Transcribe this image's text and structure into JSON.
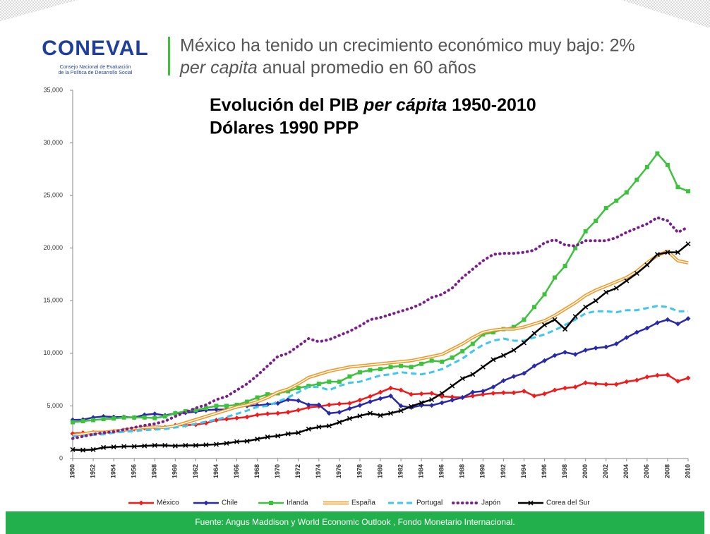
{
  "logo": {
    "name": "CONEVAL",
    "sub1": "Consejo Nacional de Evaluación",
    "sub2": "de la Política de Desarrollo Social"
  },
  "header": {
    "line1": "México ha tenido un crecimiento económico muy bajo: 2%",
    "line2_italic": "per capita",
    "line2_rest": " anual promedio en 60 años"
  },
  "footer": "Fuente: Angus Maddison y World Economic Outlook , Fondo Monetario Internacional.",
  "chart_data": {
    "type": "line",
    "title": [
      "Evolución del PIB ",
      "per cápita",
      " 1950-2010"
    ],
    "subtitle": "Dólares 1990 PPP",
    "x": [
      1950,
      1951,
      1952,
      1953,
      1954,
      1955,
      1956,
      1957,
      1958,
      1959,
      1960,
      1961,
      1962,
      1963,
      1964,
      1965,
      1966,
      1967,
      1968,
      1969,
      1970,
      1971,
      1972,
      1973,
      1974,
      1975,
      1976,
      1977,
      1978,
      1979,
      1980,
      1981,
      1982,
      1983,
      1984,
      1985,
      1986,
      1987,
      1988,
      1989,
      1990,
      1991,
      1992,
      1993,
      1994,
      1995,
      1996,
      1997,
      1998,
      1999,
      2000,
      2001,
      2002,
      2003,
      2004,
      2005,
      2006,
      2007,
      2008,
      2009,
      2010
    ],
    "xlim": [
      1950,
      2010
    ],
    "xticks": [
      1950,
      1952,
      1954,
      1956,
      1958,
      1960,
      1962,
      1964,
      1966,
      1968,
      1970,
      1972,
      1974,
      1976,
      1978,
      1980,
      1982,
      1984,
      1986,
      1988,
      1990,
      1992,
      1994,
      1996,
      1998,
      2000,
      2002,
      2004,
      2006,
      2008,
      2010
    ],
    "ylim": [
      0,
      35000
    ],
    "yticks": [
      0,
      {
        "value": 5000,
        "label": "5,000"
      },
      {
        "value": 10000,
        "label": "10,000"
      },
      {
        "value": 15000,
        "label": "15,000"
      },
      {
        "value": 20000,
        "label": "20,000"
      },
      {
        "value": 25000,
        "label": "25,000"
      },
      {
        "value": 30000,
        "label": "30,000"
      },
      {
        "value": 35000,
        "label": "35,000"
      }
    ],
    "legend": "bottom",
    "series": [
      {
        "name": "México",
        "color": "#ee1c1c",
        "marker": "diamond",
        "style": "solid",
        "values": [
          2365,
          2450,
          2470,
          2420,
          2580,
          2700,
          2800,
          2900,
          2950,
          2960,
          3150,
          3170,
          3220,
          3370,
          3650,
          3750,
          3850,
          3950,
          4150,
          4250,
          4300,
          4400,
          4600,
          4850,
          4950,
          5100,
          5200,
          5250,
          5550,
          5900,
          6300,
          6700,
          6500,
          6100,
          6150,
          6200,
          5900,
          5850,
          5800,
          5950,
          6100,
          6200,
          6250,
          6250,
          6400,
          5950,
          6150,
          6500,
          6700,
          6800,
          7200,
          7100,
          7050,
          7050,
          7300,
          7450,
          7750,
          7900,
          7950,
          7350,
          7650
        ]
      },
      {
        "name": "Chile",
        "color": "#2a2aa8",
        "marker": "diamond",
        "style": "solid",
        "values": [
          3670,
          3700,
          3900,
          4000,
          3950,
          3950,
          3900,
          4150,
          4250,
          4100,
          4300,
          4350,
          4450,
          4600,
          4650,
          4650,
          4950,
          5000,
          5050,
          5150,
          5250,
          5600,
          5500,
          5100,
          5100,
          4300,
          4400,
          4750,
          5050,
          5400,
          5700,
          5950,
          5000,
          4850,
          5050,
          5050,
          5300,
          5550,
          5800,
          6300,
          6400,
          6800,
          7400,
          7800,
          8100,
          8800,
          9300,
          9800,
          10100,
          9900,
          10300,
          10500,
          10600,
          10900,
          11500,
          12000,
          12400,
          12900,
          13200,
          12800,
          13300
        ]
      },
      {
        "name": "Irlanda",
        "color": "#3ec23e",
        "marker": "square",
        "style": "solid",
        "values": [
          3450,
          3550,
          3650,
          3750,
          3800,
          3900,
          3900,
          3900,
          3850,
          4000,
          4300,
          4500,
          4600,
          4800,
          5000,
          5000,
          5100,
          5400,
          5800,
          6100,
          6200,
          6400,
          6700,
          6900,
          7100,
          7300,
          7300,
          7800,
          8200,
          8400,
          8500,
          8700,
          8800,
          8700,
          9000,
          9300,
          9200,
          9600,
          10200,
          10900,
          11800,
          12000,
          12300,
          12500,
          13200,
          14400,
          15600,
          17200,
          18300,
          20000,
          21600,
          22600,
          23800,
          24500,
          25300,
          26500,
          27700,
          29000,
          27900,
          25800,
          25400
        ]
      },
      {
        "name": "España",
        "color": "#f7941d",
        "marker": "none",
        "style": "double",
        "values": [
          2200,
          2350,
          2500,
          2500,
          2600,
          2700,
          2850,
          2950,
          3000,
          2950,
          3100,
          3400,
          3700,
          4000,
          4300,
          4600,
          4900,
          5100,
          5400,
          5800,
          6300,
          6600,
          7100,
          7700,
          8000,
          8300,
          8500,
          8700,
          8800,
          8900,
          9000,
          9100,
          9200,
          9300,
          9500,
          9700,
          9900,
          10400,
          10900,
          11500,
          12000,
          12200,
          12300,
          12300,
          12500,
          12800,
          13100,
          13600,
          14200,
          14800,
          15500,
          16000,
          16400,
          16800,
          17200,
          17800,
          18600,
          19300,
          19700,
          18800,
          18600
        ]
      },
      {
        "name": "Portugal",
        "color": "#3fc6f0",
        "marker": "none",
        "style": "dashed",
        "values": [
          2100,
          2150,
          2250,
          2300,
          2450,
          2550,
          2600,
          2700,
          2750,
          2800,
          2950,
          3100,
          3300,
          3500,
          3700,
          3950,
          4250,
          4550,
          4900,
          5000,
          5400,
          5800,
          6300,
          6800,
          6800,
          6500,
          6900,
          7200,
          7300,
          7600,
          7900,
          8000,
          8200,
          8100,
          8000,
          8200,
          8500,
          9000,
          9500,
          10200,
          10800,
          11200,
          11400,
          11200,
          11200,
          11500,
          11800,
          12200,
          12700,
          13200,
          13800,
          14000,
          14000,
          13900,
          14100,
          14100,
          14300,
          14500,
          14400,
          14000,
          14000
        ]
      },
      {
        "name": "Japón",
        "color": "#7a1f8c",
        "marker": "none",
        "style": "dotted",
        "values": [
          1900,
          2100,
          2300,
          2450,
          2550,
          2750,
          2950,
          3150,
          3300,
          3550,
          4000,
          4400,
          4800,
          5100,
          5600,
          5900,
          6500,
          7100,
          7900,
          8800,
          9700,
          10000,
          10700,
          11400,
          11100,
          11300,
          11700,
          12100,
          12600,
          13200,
          13400,
          13700,
          14000,
          14300,
          14700,
          15300,
          15600,
          16200,
          17200,
          18000,
          18800,
          19400,
          19500,
          19500,
          19600,
          19800,
          20500,
          20800,
          20300,
          20200,
          20700,
          20700,
          20700,
          21000,
          21500,
          21900,
          22300,
          22900,
          22600,
          21500,
          22000
        ]
      },
      {
        "name": "Corea del Sur",
        "color": "#000000",
        "marker": "x",
        "style": "solid",
        "values": [
          850,
          800,
          850,
          1050,
          1100,
          1150,
          1150,
          1200,
          1250,
          1250,
          1200,
          1250,
          1250,
          1300,
          1350,
          1450,
          1600,
          1650,
          1850,
          2050,
          2150,
          2350,
          2450,
          2800,
          3000,
          3100,
          3450,
          3800,
          4050,
          4300,
          4100,
          4300,
          4550,
          4950,
          5300,
          5600,
          6200,
          6900,
          7600,
          8000,
          8700,
          9400,
          9800,
          10300,
          11000,
          11900,
          12700,
          13200,
          12300,
          13500,
          14400,
          15000,
          15800,
          16200,
          16900,
          17600,
          18400,
          19400,
          19600,
          19600,
          20400
        ]
      }
    ]
  }
}
